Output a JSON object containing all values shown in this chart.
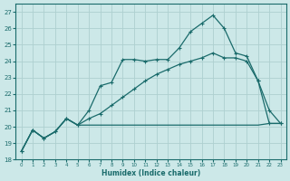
{
  "xlabel": "Humidex (Indice chaleur)",
  "xlim": [
    -0.5,
    23.5
  ],
  "ylim": [
    18,
    27.5
  ],
  "yticks": [
    18,
    19,
    20,
    21,
    22,
    23,
    24,
    25,
    26,
    27
  ],
  "xticks": [
    0,
    1,
    2,
    3,
    4,
    5,
    6,
    7,
    8,
    9,
    10,
    11,
    12,
    13,
    14,
    15,
    16,
    17,
    18,
    19,
    20,
    21,
    22,
    23
  ],
  "bg_color": "#cce8e8",
  "grid_color": "#aed0d0",
  "line_color": "#1a6b6b",
  "line1_y": [
    18.5,
    19.8,
    19.3,
    19.7,
    20.5,
    20.1,
    21.0,
    22.5,
    22.7,
    24.1,
    24.1,
    24.0,
    24.1,
    24.1,
    24.8,
    25.8,
    26.3,
    26.8,
    26.0,
    24.5,
    24.3,
    22.8,
    21.0,
    20.2
  ],
  "line2_y": [
    18.5,
    19.8,
    19.3,
    19.7,
    20.5,
    20.1,
    20.5,
    20.8,
    21.3,
    21.8,
    22.3,
    22.8,
    23.2,
    23.5,
    23.8,
    24.0,
    24.2,
    24.5,
    24.2,
    24.2,
    24.0,
    22.8,
    20.2,
    20.2
  ],
  "line3_y": [
    18.5,
    19.8,
    19.3,
    19.7,
    20.5,
    20.1,
    20.1,
    20.1,
    20.1,
    20.1,
    20.1,
    20.1,
    20.1,
    20.1,
    20.1,
    20.1,
    20.1,
    20.1,
    20.1,
    20.1,
    20.1,
    20.1,
    20.2,
    20.2
  ]
}
